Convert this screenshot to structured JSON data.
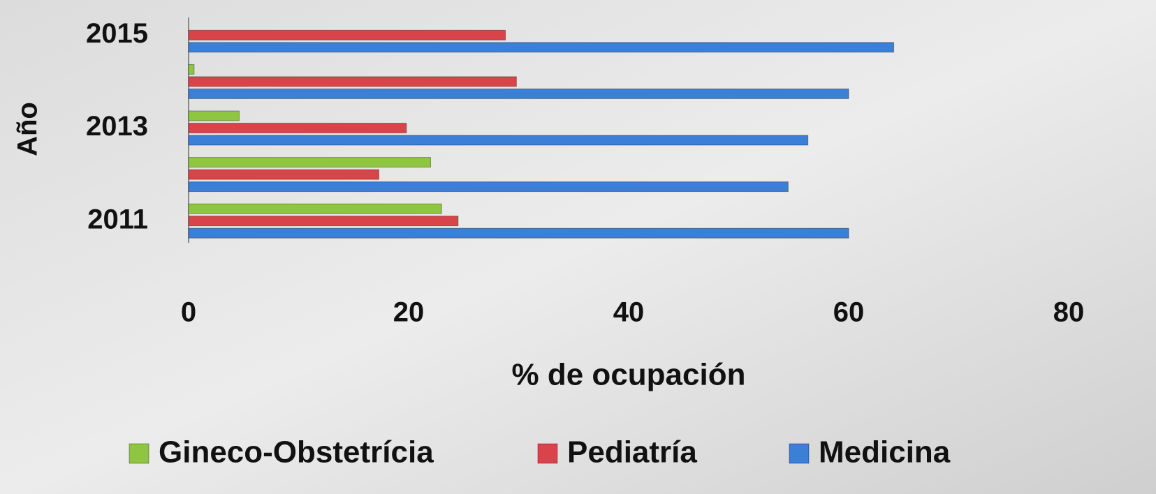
{
  "chart_data": {
    "type": "hbar",
    "x_label": "% de ocupación",
    "y_label": "Año",
    "categories": [
      "2011",
      null,
      "2013",
      null,
      "2015"
    ],
    "series": [
      {
        "name": "Gineco-Obstetrícia",
        "color": "#8fc641",
        "values": [
          23,
          22,
          4.6,
          0.5,
          0
        ]
      },
      {
        "name": "Pediatría",
        "color": "#d9444a",
        "values": [
          24.5,
          17.3,
          19.8,
          29.8,
          28.8
        ]
      },
      {
        "name": "Medicina",
        "color": "#3c7fd6",
        "values": [
          60,
          54.5,
          56.3,
          60,
          64.1
        ]
      }
    ],
    "xlim": [
      0,
      80
    ],
    "xticks": [
      0,
      20,
      40,
      60,
      80
    ]
  }
}
